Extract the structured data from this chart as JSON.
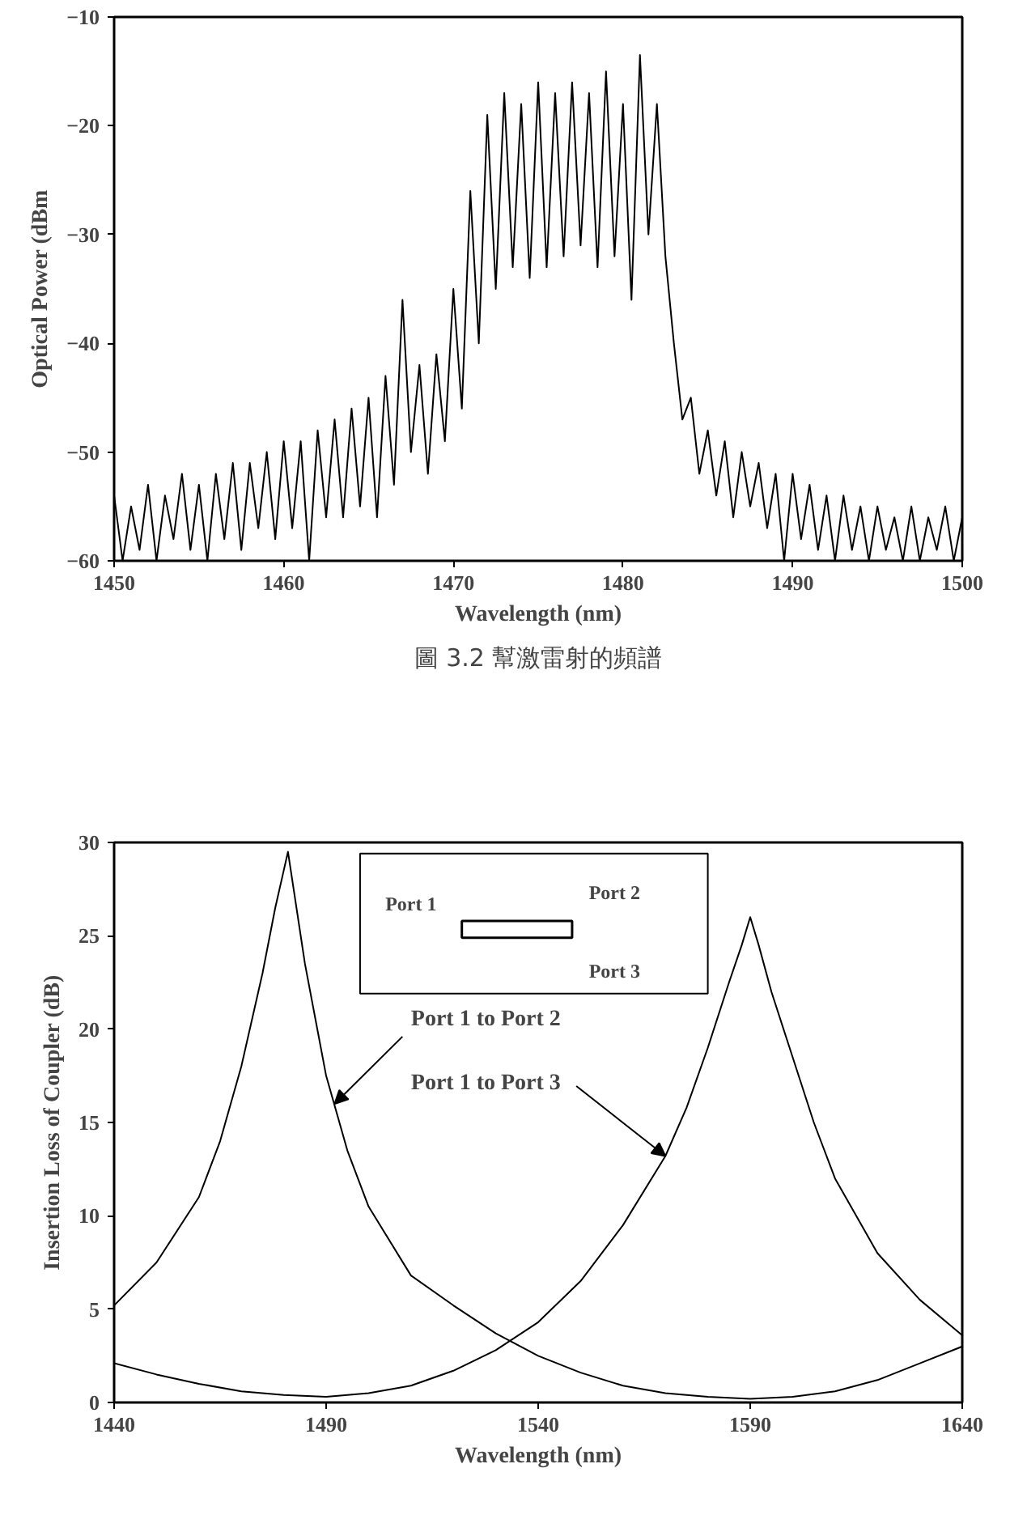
{
  "chart_data": [
    {
      "type": "line",
      "ylabel": "Optical Power (dBm",
      "xlabel": "Wavelength (nm)",
      "x": [
        1450,
        1450.5,
        1451,
        1451.5,
        1452,
        1452.5,
        1453,
        1453.5,
        1454,
        1454.5,
        1455,
        1455.5,
        1456,
        1456.5,
        1457,
        1457.5,
        1458,
        1458.5,
        1459,
        1459.5,
        1460,
        1460.5,
        1461,
        1461.5,
        1462,
        1462.5,
        1463,
        1463.5,
        1464,
        1464.5,
        1465,
        1465.5,
        1466,
        1466.5,
        1467,
        1467.5,
        1468,
        1468.5,
        1469,
        1469.5,
        1470,
        1470.5,
        1471,
        1471.5,
        1472,
        1472.5,
        1473,
        1473.5,
        1474,
        1474.5,
        1475,
        1475.5,
        1476,
        1476.5,
        1477,
        1477.5,
        1478,
        1478.5,
        1479,
        1479.5,
        1480,
        1480.5,
        1481,
        1481.5,
        1482,
        1482.5,
        1483,
        1483.5,
        1484,
        1484.5,
        1485,
        1485.5,
        1486,
        1486.5,
        1487,
        1487.5,
        1488,
        1488.5,
        1489,
        1489.5,
        1490,
        1490.5,
        1491,
        1491.5,
        1492,
        1492.5,
        1493,
        1493.5,
        1494,
        1494.5,
        1495,
        1495.5,
        1496,
        1496.5,
        1497,
        1497.5,
        1498,
        1498.5,
        1499,
        1499.5,
        1500
      ],
      "series": [
        {
          "color": "#000000",
          "values": [
            -54,
            -60,
            -55,
            -59,
            -53,
            -60,
            -54,
            -58,
            -52,
            -59,
            -53,
            -60,
            -52,
            -58,
            -51,
            -59,
            -51,
            -57,
            -50,
            -58,
            -49,
            -57,
            -49,
            -60,
            -48,
            -56,
            -47,
            -56,
            -46,
            -55,
            -45,
            -56,
            -43,
            -53,
            -36,
            -50,
            -42,
            -52,
            -41,
            -49,
            -35,
            -46,
            -26,
            -40,
            -19,
            -35,
            -17,
            -33,
            -18,
            -34,
            -16,
            -33,
            -17,
            -32,
            -16,
            -31,
            -17,
            -33,
            -15,
            -32,
            -18,
            -36,
            -13.5,
            -30,
            -18,
            -32,
            -40,
            -47,
            -45,
            -52,
            -48,
            -54,
            -49,
            -56,
            -50,
            -55,
            -51,
            -57,
            -52,
            -60,
            -52,
            -58,
            -53,
            -59,
            -54,
            -60,
            -54,
            -59,
            -55,
            -60,
            -55,
            -59,
            -56,
            -60,
            -55,
            -60,
            -56,
            -59,
            -55,
            -60,
            -56
          ]
        }
      ],
      "xlim": [
        1450,
        1500
      ],
      "ylim": [
        -60,
        -10
      ],
      "xticks": [
        1450,
        1460,
        1470,
        1480,
        1490,
        1500
      ],
      "yticks": [
        -60,
        -50,
        -40,
        -30,
        -20,
        -10
      ],
      "annotations": [
        "圖 3.2 幫激雷射的頻譜"
      ]
    },
    {
      "type": "line",
      "ylabel": "Insertion Loss of Coupler (dB)",
      "xlabel": "Wavelength (nm)",
      "series": [
        {
          "color": "#000000",
          "x": [
            1440,
            1450,
            1460,
            1465,
            1470,
            1475,
            1478,
            1480,
            1481,
            1482,
            1485,
            1490,
            1495,
            1500,
            1510,
            1520,
            1530,
            1540,
            1550,
            1560,
            1570,
            1580,
            1590,
            1600,
            1610,
            1620,
            1630,
            1640
          ],
          "values": [
            5.2,
            7.5,
            11,
            14,
            18,
            23,
            26.5,
            28.5,
            29.5,
            28,
            23.5,
            17.5,
            13.5,
            10.5,
            6.8,
            5.2,
            3.7,
            2.5,
            1.6,
            0.9,
            0.5,
            0.3,
            0.2,
            0.3,
            0.6,
            1.2,
            2.1,
            3
          ]
        },
        {
          "color": "#000000",
          "x": [
            1440,
            1450,
            1460,
            1470,
            1480,
            1490,
            1500,
            1510,
            1520,
            1530,
            1540,
            1550,
            1560,
            1570,
            1575,
            1580,
            1585,
            1588,
            1590,
            1592,
            1595,
            1600,
            1605,
            1610,
            1620,
            1630,
            1640
          ],
          "values": [
            2.1,
            1.5,
            1,
            0.6,
            0.4,
            0.3,
            0.5,
            0.9,
            1.7,
            2.8,
            4.3,
            6.5,
            9.5,
            13.2,
            15.8,
            19,
            22.5,
            24.5,
            26,
            24.5,
            22,
            18.5,
            15,
            12,
            8,
            5.5,
            3.6
          ]
        }
      ],
      "xlim": [
        1440,
        1640
      ],
      "ylim": [
        0,
        30
      ],
      "xticks": [
        1440,
        1490,
        1540,
        1590,
        1640
      ],
      "yticks": [
        0,
        5,
        10,
        15,
        20,
        25,
        30
      ],
      "annotations": [
        {
          "text": "Port 1 to Port 2",
          "x": 1492,
          "y": 16
        },
        {
          "text": "Port 1 to Port 3",
          "x": 1570,
          "y": 13.2
        },
        "Port 1",
        "Port 2",
        "Port 3"
      ]
    }
  ]
}
